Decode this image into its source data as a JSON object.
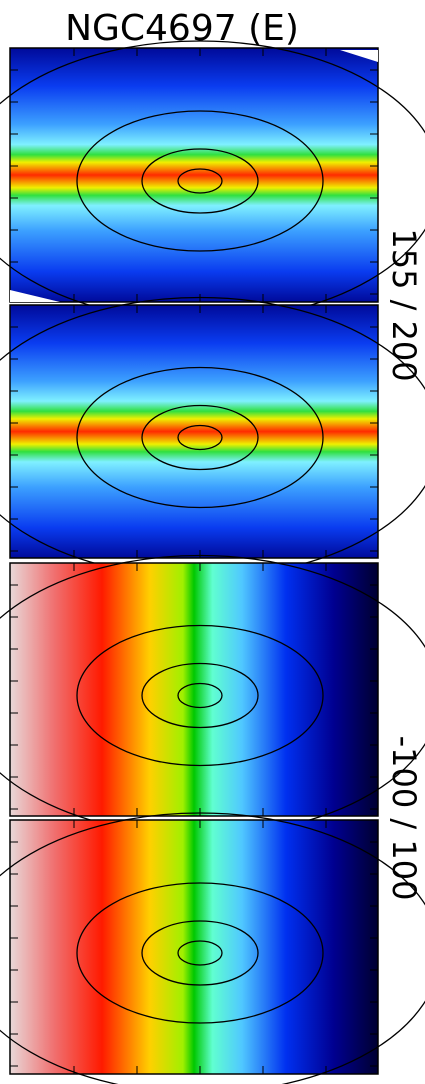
{
  "title": "NGC4697 (E)",
  "labels": [
    "155 / 200",
    "-100 / 100"
  ]
}
